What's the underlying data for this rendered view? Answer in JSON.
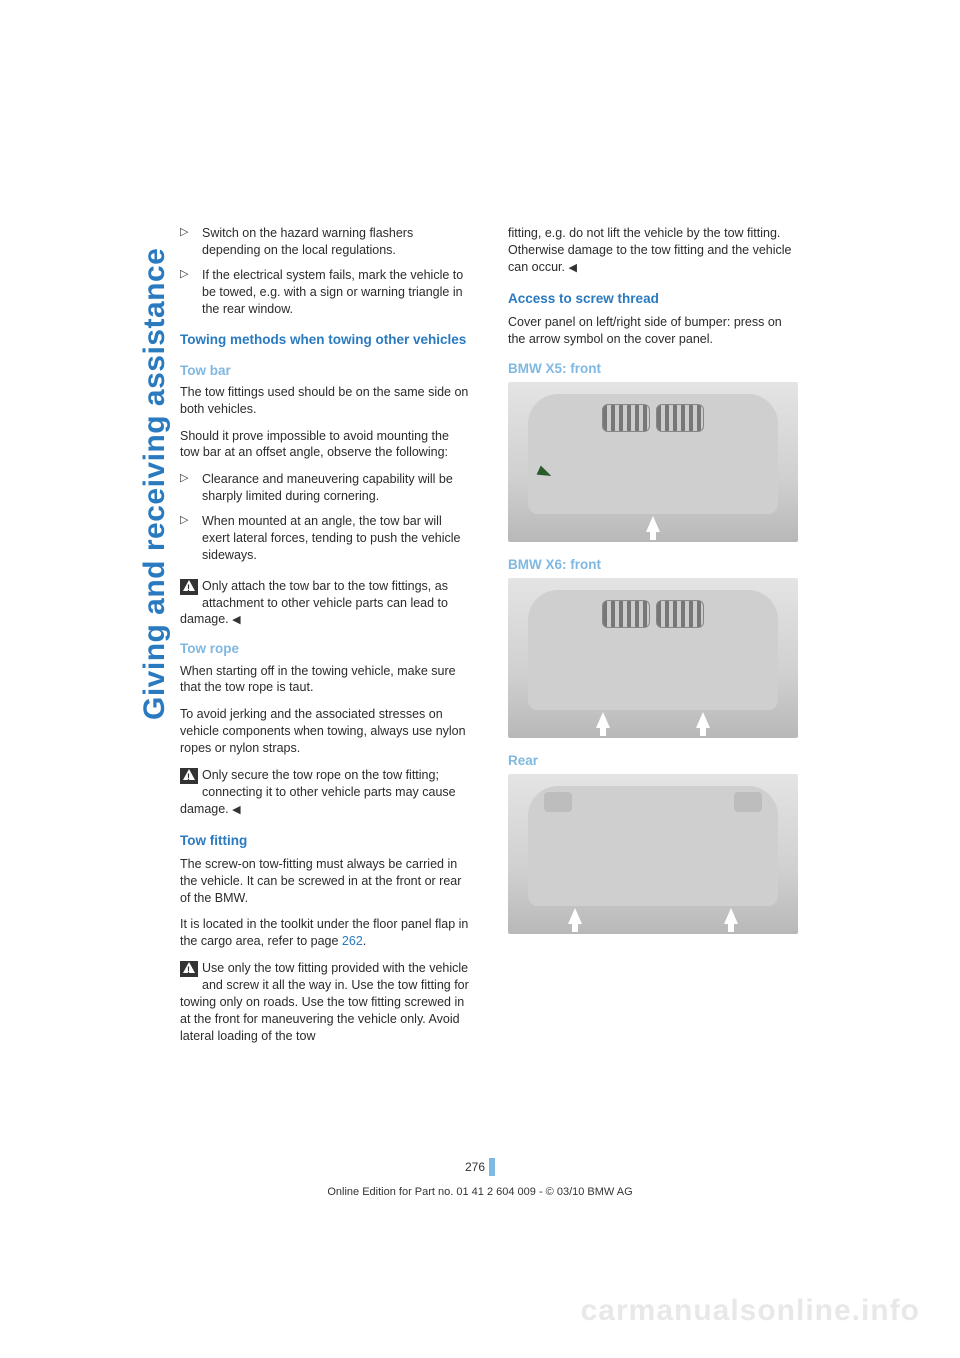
{
  "sideTitle": "Giving and receiving assistance",
  "left": {
    "bullets1": [
      "Switch on the hazard warning flashers depending on the local regulations.",
      "If the electrical system fails, mark the vehicle to be towed, e.g. with a sign or warning triangle in the rear window."
    ],
    "h1": "Towing methods when towing other vehicles",
    "h2": "Tow bar",
    "p1": "The tow fittings used should be on the same side on both vehicles.",
    "p2": "Should it prove impossible to avoid mounting the tow bar at an offset angle, observe the following:",
    "bullets2": [
      "Clearance and maneuvering capability will be sharply limited during cornering.",
      "When mounted at an angle, the tow bar will exert lateral forces, tending to push the vehicle sideways."
    ],
    "warn1": "Only attach the tow bar to the tow fittings, as attachment to other vehicle parts can lead to damage.",
    "h3": "Tow rope",
    "p3": "When starting off in the towing vehicle, make sure that the tow rope is taut.",
    "p4": "To avoid jerking and the associated stresses on vehicle components when towing, always use nylon ropes or nylon straps.",
    "warn2": "Only secure the tow rope on the tow fitting; connecting it to other vehicle parts may cause damage.",
    "h4": "Tow fitting",
    "p5": "The screw-on tow-fitting must always be carried in the vehicle. It can be screwed in at the front or rear of the BMW.",
    "p6a": "It is located in the toolkit under the floor panel flap in the cargo area, refer to page ",
    "p6ref": "262",
    "p6b": ".",
    "warn3": "Use only the tow fitting provided with the vehicle and screw it all the way in. Use the tow fitting for towing only on roads. Use the tow fitting screwed in at the front for maneuvering the vehicle only. Avoid lateral loading of the tow"
  },
  "right": {
    "pcont": "fitting, e.g. do not lift the vehicle by the tow fitting. Otherwise damage to the tow fitting and the vehicle can occur.",
    "h1": "Access to screw thread",
    "p1": "Cover panel on left/right side of bumper: press on the arrow symbol on the cover panel.",
    "h2": "BMW X5: front",
    "h3": "BMW X6: front",
    "h4": "Rear"
  },
  "pageNumber": "276",
  "footer": "Online Edition for Part no. 01 41 2 604 009 - © 03/10 BMW AG",
  "watermark": "carmanualsonline.info",
  "endMark": "◀"
}
